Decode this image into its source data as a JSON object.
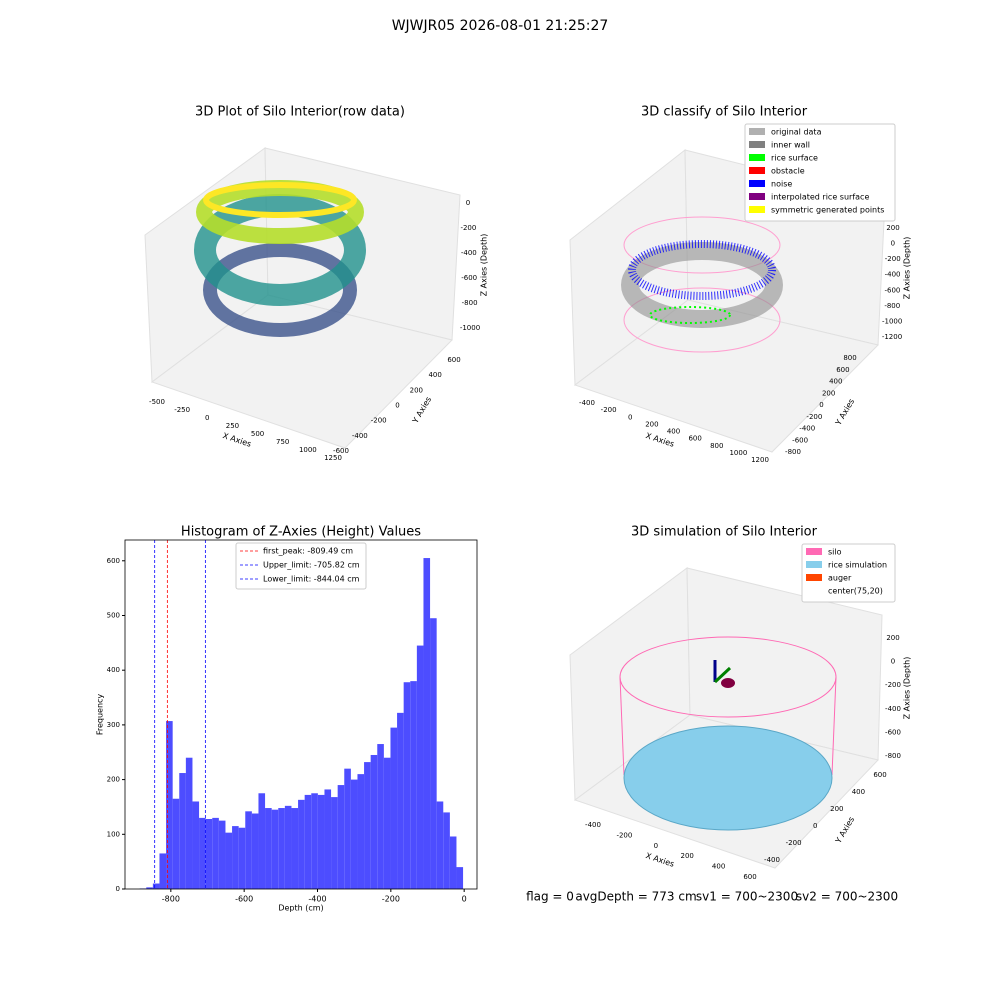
{
  "title": "WJWJR05 2026-08-01 21:25:27",
  "chart_data": [
    {
      "type": "scatter3d",
      "title": "3D Plot of Silo Interior(row data)",
      "xlabel": "X Axies",
      "ylabel": "Y Axies",
      "zlabel": "Z Axies (Depth)",
      "xticks": [
        -500,
        -250,
        0,
        250,
        500,
        750,
        1000,
        1250
      ],
      "yticks": [
        -600,
        -400,
        -200,
        0,
        200,
        400,
        600
      ],
      "zticks": [
        0,
        -200,
        -400,
        -600,
        -800,
        -1000
      ]
    },
    {
      "type": "scatter3d",
      "title": "3D classify of Silo Interior",
      "xlabel": "X Axies",
      "ylabel": "Y Axies",
      "zlabel": "Z Axies (Depth)",
      "xticks": [
        -400,
        -200,
        0,
        200,
        400,
        600,
        800,
        1000,
        1200
      ],
      "yticks": [
        -800,
        -600,
        -400,
        -200,
        0,
        200,
        400,
        600,
        800
      ],
      "zticks": [
        200,
        0,
        -200,
        -400,
        -600,
        -800,
        -1000,
        -1200
      ],
      "legend": [
        {
          "name": "original data",
          "color": "#b0b0b0"
        },
        {
          "name": "inner wall",
          "color": "#808080"
        },
        {
          "name": "rice surface",
          "color": "#00ff00"
        },
        {
          "name": "obstacle",
          "color": "#ff0000"
        },
        {
          "name": "noise",
          "color": "#0000ff"
        },
        {
          "name": "interpolated rice surface",
          "color": "#800080"
        },
        {
          "name": "symmetric generated points",
          "color": "#ffff00"
        }
      ]
    },
    {
      "type": "histogram",
      "title": "Histogram of Z-Axies (Height) Values",
      "xlabel": "Depth (cm)",
      "ylabel": "Frequency",
      "color": "#4d4dff",
      "bins": [
        -885,
        -867,
        -849,
        -831,
        -813,
        -795,
        -777,
        -759,
        -741,
        -723,
        -705,
        -687,
        -669,
        -651,
        -633,
        -615,
        -597,
        -579,
        -561,
        -543,
        -525,
        -507,
        -489,
        -471,
        -453,
        -435,
        -417,
        -399,
        -381,
        -363,
        -345,
        -327,
        -309,
        -291,
        -273,
        -255,
        -237,
        -219,
        -201,
        -183,
        -165,
        -147,
        -129,
        -111,
        -93,
        -75,
        -57,
        -39,
        -21,
        -3
      ],
      "values": [
        1,
        3,
        10,
        65,
        307,
        165,
        212,
        240,
        160,
        130,
        128,
        130,
        125,
        103,
        115,
        112,
        142,
        138,
        175,
        148,
        145,
        148,
        152,
        148,
        163,
        172,
        175,
        172,
        182,
        168,
        190,
        220,
        200,
        210,
        232,
        245,
        265,
        240,
        295,
        322,
        378,
        380,
        445,
        605,
        495,
        160,
        140,
        96,
        40
      ],
      "xlim": [
        -925,
        35
      ],
      "ylim": [
        0,
        638
      ],
      "xticks": [
        -800,
        -600,
        -400,
        -200,
        0
      ],
      "yticks": [
        0,
        100,
        200,
        300,
        400,
        500,
        600
      ],
      "lines": [
        {
          "name": "first_peak: -809.49 cm",
          "value": -809.49,
          "color": "#ff0000"
        },
        {
          "name": "Upper_limit: -705.82 cm",
          "value": -705.82,
          "color": "#0000ff"
        },
        {
          "name": "Lower_limit: -844.04 cm",
          "value": -844.04,
          "color": "#0000ff"
        }
      ]
    },
    {
      "type": "surface3d",
      "title": "3D simulation of Silo Interior",
      "xlabel": "X Axies",
      "ylabel": "Y Axies",
      "zlabel": "Z Axies (Depth)",
      "xticks": [
        -400,
        -200,
        0,
        200,
        400,
        600
      ],
      "yticks": [
        -400,
        -200,
        0,
        200,
        400,
        600
      ],
      "zticks": [
        200,
        0,
        -200,
        -400,
        -600,
        -800
      ],
      "legend": [
        {
          "name": "silo",
          "color": "#ff69b4"
        },
        {
          "name": "rice simulation",
          "color": "#87ceeb"
        },
        {
          "name": "auger",
          "color": "#ff4500"
        },
        {
          "name": "center(75,20)",
          "color": "#ffffff"
        }
      ]
    }
  ],
  "footer": [
    "flag = 0",
    "avgDepth = 773 cm",
    "sv1 = 700~2300",
    "sv2 = 700~2300"
  ]
}
